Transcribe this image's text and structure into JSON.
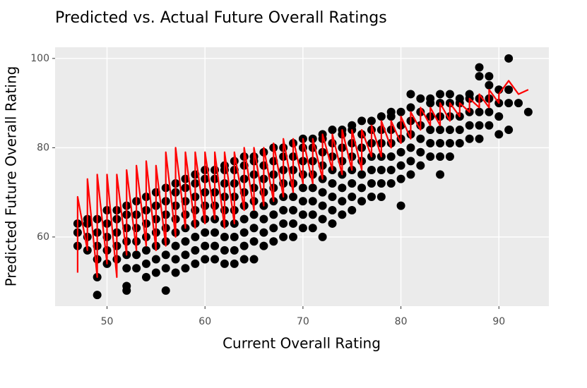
{
  "chart_data": {
    "type": "scatter",
    "title": "Predicted vs. Actual Future Overall Ratings",
    "x_label": "Current Overall Rating",
    "y_label": "Predicted Future Overall Rating",
    "xlim": [
      44.7,
      95.1
    ],
    "ylim": [
      44.5,
      102.5
    ],
    "xticks": [
      50,
      60,
      70,
      80,
      90
    ],
    "yticks": [
      60,
      80,
      100
    ],
    "grid": true,
    "point_color": "#000000",
    "columns": [
      {
        "x": 47,
        "y": [
          58,
          61,
          63
        ]
      },
      {
        "x": 48,
        "y": [
          57,
          60,
          63,
          64
        ]
      },
      {
        "x": 49,
        "y": [
          47,
          51,
          55,
          58,
          61,
          64
        ]
      },
      {
        "x": 50,
        "y": [
          54,
          57,
          60,
          63,
          66
        ]
      },
      {
        "x": 51,
        "y": [
          55,
          58,
          61,
          64,
          66
        ]
      },
      {
        "x": 52,
        "y": [
          48,
          49,
          53,
          56,
          59,
          62,
          65,
          67
        ]
      },
      {
        "x": 53,
        "y": [
          53,
          56,
          59,
          62,
          65,
          68
        ]
      },
      {
        "x": 54,
        "y": [
          51,
          54,
          57,
          60,
          63,
          66,
          69
        ]
      },
      {
        "x": 55,
        "y": [
          52,
          55,
          58,
          61,
          64,
          67,
          70
        ]
      },
      {
        "x": 56,
        "y": [
          48,
          53,
          56,
          59,
          62,
          65,
          68,
          71
        ]
      },
      {
        "x": 57,
        "y": [
          52,
          55,
          58,
          61,
          64,
          67,
          70,
          72
        ]
      },
      {
        "x": 58,
        "y": [
          53,
          56,
          59,
          62,
          65,
          68,
          71,
          73
        ]
      },
      {
        "x": 59,
        "y": [
          54,
          57,
          60,
          63,
          66,
          69,
          72,
          74
        ]
      },
      {
        "x": 60,
        "y": [
          55,
          58,
          61,
          64,
          67,
          70,
          73,
          75
        ]
      },
      {
        "x": 61,
        "y": [
          55,
          58,
          61,
          64,
          67,
          70,
          73,
          75
        ]
      },
      {
        "x": 62,
        "y": [
          54,
          57,
          60,
          63,
          66,
          69,
          72,
          75,
          76
        ]
      },
      {
        "x": 63,
        "y": [
          54,
          57,
          60,
          63,
          66,
          69,
          72,
          75,
          77
        ]
      },
      {
        "x": 64,
        "y": [
          55,
          58,
          61,
          64,
          67,
          70,
          73,
          76,
          78
        ]
      },
      {
        "x": 65,
        "y": [
          55,
          59,
          62,
          65,
          68,
          71,
          74,
          77,
          78
        ]
      },
      {
        "x": 66,
        "y": [
          58,
          61,
          64,
          67,
          70,
          73,
          76,
          79
        ]
      },
      {
        "x": 67,
        "y": [
          59,
          62,
          65,
          68,
          71,
          74,
          77,
          80
        ]
      },
      {
        "x": 68,
        "y": [
          60,
          63,
          66,
          69,
          72,
          75,
          78,
          80
        ]
      },
      {
        "x": 69,
        "y": [
          60,
          63,
          66,
          69,
          72,
          75,
          78,
          81
        ]
      },
      {
        "x": 70,
        "y": [
          62,
          65,
          68,
          71,
          74,
          77,
          80,
          82
        ]
      },
      {
        "x": 71,
        "y": [
          62,
          65,
          68,
          71,
          74,
          77,
          80,
          82
        ]
      },
      {
        "x": 72,
        "y": [
          60,
          64,
          67,
          70,
          73,
          76,
          79,
          82,
          83
        ]
      },
      {
        "x": 73,
        "y": [
          63,
          66,
          69,
          72,
          75,
          78,
          81,
          84
        ]
      },
      {
        "x": 74,
        "y": [
          65,
          68,
          71,
          74,
          77,
          80,
          83,
          84
        ]
      },
      {
        "x": 75,
        "y": [
          66,
          69,
          72,
          75,
          78,
          81,
          84,
          85
        ]
      },
      {
        "x": 76,
        "y": [
          68,
          71,
          74,
          77,
          80,
          83,
          86
        ]
      },
      {
        "x": 77,
        "y": [
          69,
          72,
          75,
          78,
          81,
          84,
          86
        ]
      },
      {
        "x": 78,
        "y": [
          69,
          72,
          75,
          78,
          81,
          84,
          87
        ]
      },
      {
        "x": 79,
        "y": [
          72,
          75,
          78,
          81,
          84,
          87,
          88
        ]
      },
      {
        "x": 80,
        "y": [
          67,
          73,
          76,
          79,
          82,
          85,
          88
        ]
      },
      {
        "x": 81,
        "y": [
          74,
          77,
          80,
          83,
          86,
          89,
          92
        ]
      },
      {
        "x": 82,
        "y": [
          76,
          79,
          82,
          85,
          88,
          91
        ]
      },
      {
        "x": 83,
        "y": [
          78,
          81,
          84,
          87,
          90,
          91
        ]
      },
      {
        "x": 84,
        "y": [
          74,
          78,
          81,
          84,
          87,
          90,
          92
        ]
      },
      {
        "x": 85,
        "y": [
          78,
          81,
          84,
          87,
          90,
          92
        ]
      },
      {
        "x": 86,
        "y": [
          81,
          84,
          87,
          90,
          91
        ]
      },
      {
        "x": 87,
        "y": [
          82,
          85,
          88,
          91,
          92
        ]
      },
      {
        "x": 88,
        "y": [
          82,
          85,
          88,
          91,
          96,
          98
        ]
      },
      {
        "x": 89,
        "y": [
          85,
          88,
          91,
          94,
          96
        ]
      },
      {
        "x": 90,
        "y": [
          83,
          87,
          90,
          93
        ]
      },
      {
        "x": 91,
        "y": [
          84,
          90,
          93,
          100
        ]
      },
      {
        "x": 92,
        "y": [
          90
        ]
      },
      {
        "x": 93,
        "y": [
          88
        ]
      }
    ],
    "line": {
      "color": "#ff0000",
      "x": [
        47,
        47,
        48,
        48,
        49,
        49,
        50,
        50,
        51,
        51,
        52,
        52,
        53,
        53,
        54,
        54,
        55,
        55,
        56,
        56,
        57,
        57,
        58,
        58,
        59,
        59,
        60,
        60,
        61,
        61,
        62,
        62,
        63,
        63,
        64,
        64,
        65,
        65,
        66,
        66,
        67,
        67,
        68,
        68,
        69,
        69,
        70,
        70,
        71,
        71,
        72,
        72,
        73,
        73,
        74,
        74,
        75,
        75,
        76,
        76,
        77,
        77,
        78,
        78,
        79,
        79,
        80,
        80,
        81,
        81,
        82,
        82,
        83,
        83,
        84,
        84,
        85,
        85,
        86,
        86,
        87,
        87,
        88,
        88,
        89,
        89,
        90,
        90,
        91,
        92,
        93
      ],
      "y": [
        52,
        69,
        57,
        73,
        51,
        74,
        54,
        74,
        51,
        74,
        56,
        75,
        57,
        76,
        58,
        77,
        57,
        76,
        58,
        79,
        60,
        80,
        62,
        79,
        62,
        79,
        63,
        79,
        64,
        79,
        62,
        79,
        63,
        79,
        66,
        80,
        66,
        80,
        67,
        80,
        68,
        81,
        69,
        82,
        70,
        82,
        72,
        82,
        72,
        82,
        73,
        83,
        75,
        83,
        74,
        84,
        75,
        84,
        75,
        84,
        78,
        85,
        78,
        86,
        80,
        86,
        81,
        87,
        82,
        88,
        84,
        89,
        85,
        89,
        85,
        90,
        86,
        90,
        87,
        90,
        88,
        91,
        89,
        92,
        89,
        93,
        90,
        92,
        95,
        92,
        93
      ]
    }
  }
}
